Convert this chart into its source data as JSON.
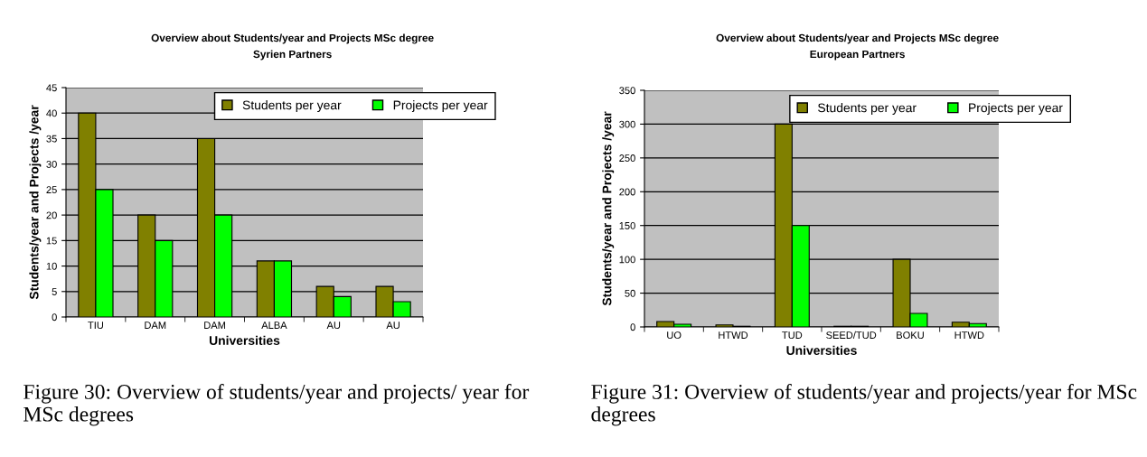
{
  "chart_data": [
    {
      "type": "bar",
      "title": "Overview about Students/year and Projects MSc degree",
      "subtitle": "Syrien Partners",
      "xlabel": "Universities",
      "ylabel": "Students/year and Projects /year",
      "categories": [
        "TIU",
        "DAM",
        "DAM",
        "ALBA",
        "AU",
        "AU"
      ],
      "series": [
        {
          "name": "Students per year",
          "color": "#808000",
          "values": [
            40,
            20,
            35,
            11,
            6,
            6
          ]
        },
        {
          "name": "Projects per year",
          "color": "#00ff00",
          "values": [
            25,
            15,
            20,
            11,
            4,
            3
          ]
        }
      ],
      "ylim": [
        0,
        45
      ],
      "yticks": [
        0,
        5,
        10,
        15,
        20,
        25,
        30,
        35,
        40,
        45
      ],
      "grid": "y",
      "legend": "top right",
      "annotations": [
        "Figure 30: Overview of students/year and projects/ year for MSc degrees"
      ]
    },
    {
      "type": "bar",
      "title": "Overview about Students/year and Projects MSc degree",
      "subtitle": "European Partners",
      "xlabel": "Universities",
      "ylabel": "Students/year and Projects /year",
      "categories": [
        "UO",
        "HTWD",
        "TUD",
        "SEED/TUD",
        "BOKU",
        "HTWD"
      ],
      "series": [
        {
          "name": "Students per year",
          "color": "#808000",
          "values": [
            8,
            3,
            300,
            1,
            100,
            7
          ]
        },
        {
          "name": "Projects per year",
          "color": "#00ff00",
          "values": [
            4,
            1,
            150,
            1,
            20,
            5
          ]
        }
      ],
      "ylim": [
        0,
        350
      ],
      "yticks": [
        0,
        50,
        100,
        150,
        200,
        250,
        300,
        350
      ],
      "grid": "y",
      "legend": "top right",
      "annotations": [
        "Figure 31: Overview of students/year and projects/year for MSc degrees"
      ]
    }
  ]
}
